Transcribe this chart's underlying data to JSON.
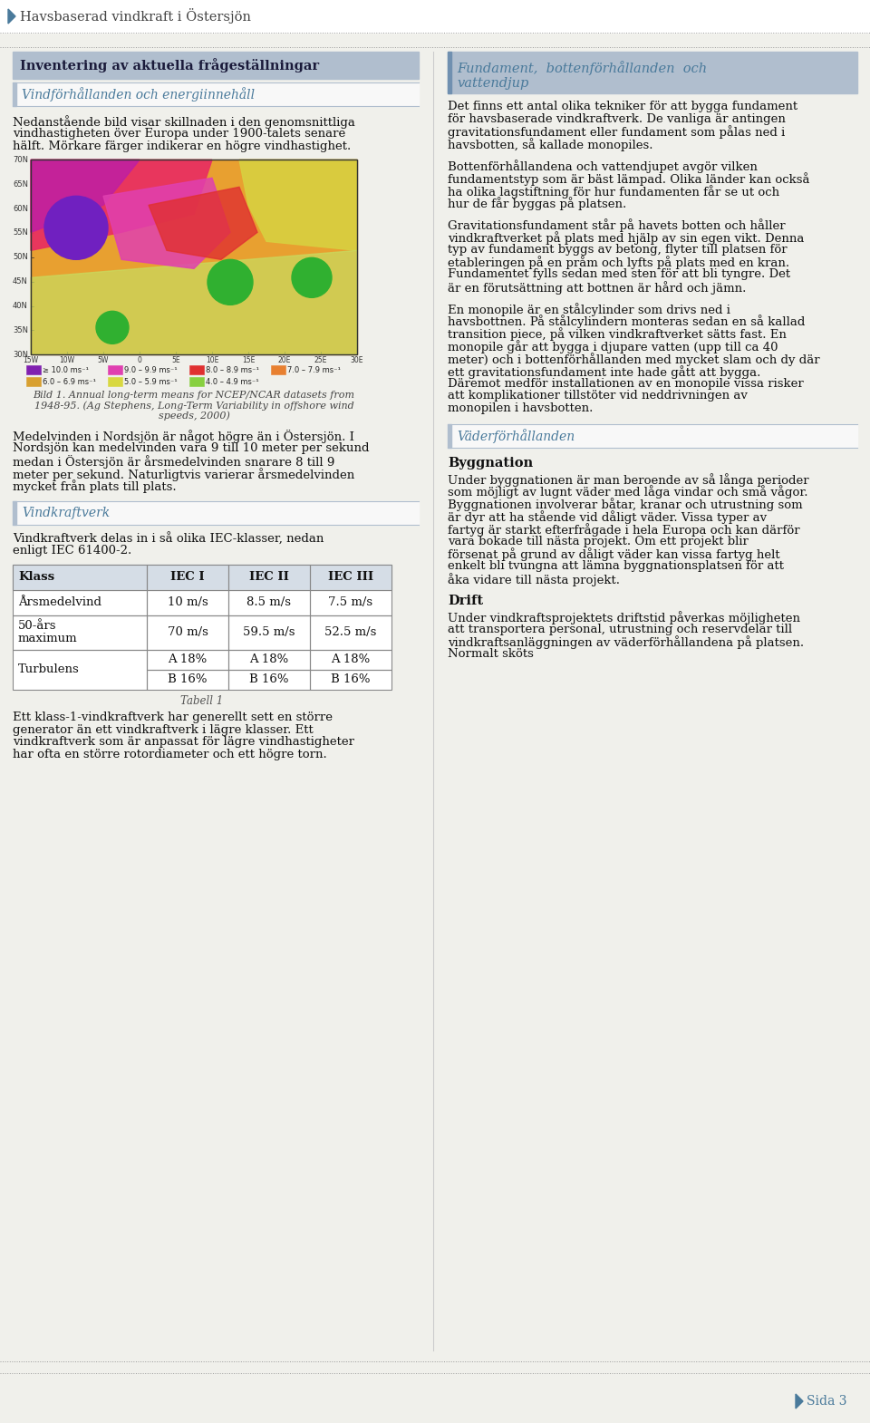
{
  "page_bg": "#f0f0eb",
  "header_text": "Havsbaserad vindkraft i Östersjön",
  "header_arrow_color": "#4a7a9b",
  "footer_text": "Sida 3",
  "footer_color": "#4a7a9b",
  "divider_color": "#999999",
  "left_section_header": "Inventering av aktuella frågeställningar",
  "left_section_header_bg": "#b0bece",
  "subsection1_title": "Vindförhållanden och energiinnehåll",
  "subsection1_color": "#4a7a9b",
  "subsection1_border_color": "#b0bece",
  "subsection1_bg": "#f8f8f8",
  "para1": "Nedanstående bild visar skillnaden i den genomsnittliga vindhastigheten över Europa under 1900-talets senare hälft. Mörkare färger indikerar en högre vindhastighet.",
  "fig_caption_line1": "Bild 1. Annual long-term means for NCEP/NCAR datasets from",
  "fig_caption_line2": "1948-95. (Ag Stephens, Long-Term Variability in offshore wind",
  "fig_caption_line3": "speeds, 2000)",
  "para2": "Medelvinden i Nordsjön är något högre än i Östersjön. I Nordsjön kan medelvinden vara 9 till 10 meter per sekund medan i Östersjön är årsmedelvinden snarare 8 till 9 meter per sekund. Naturligtvis varierar årsmedelvinden mycket från plats till plats.",
  "subsection2_title": "Vindkraftverk",
  "subsection2_color": "#4a7a9b",
  "subsection2_bg": "#f8f8f8",
  "para3": "Vindkraftverk delas in i så olika IEC-klasser, nedan enligt IEC 61400-2.",
  "table_caption": "Tabell 1",
  "table_headers": [
    "Klass",
    "IEC I",
    "IEC II",
    "IEC III"
  ],
  "table_row1": [
    "Årsmedelvind",
    "10 m/s",
    "8.5 m/s",
    "7.5 m/s"
  ],
  "table_row2_label": "50-års\nmaximum",
  "table_row2_vals": [
    "70 m/s",
    "59.5 m/s",
    "52.5 m/s"
  ],
  "table_row3_label": "Turbulens",
  "table_row3_A": "A 18%",
  "table_row3_B": "B 16%",
  "para4": "Ett klass-1-vindkraftverk har generellt sett en större generator än ett vindkraftverk i lägre klasser. Ett vindkraftverk som är anpassat för lägre vindhastigheter har ofta en större rotordiameter och ett högre torn.",
  "right_section_header_line1": "Fundament,  bottenförhållanden  och",
  "right_section_header_line2": "vattendjup",
  "right_section_header_bg": "#b0bece",
  "right_para1": "Det finns ett antal olika tekniker för att bygga fundament för havsbaserade vindkraftverk. De vanliga är antingen gravitationsfundament eller fundament som pålas ned i havsbotten, så kallade monopiles.",
  "right_para2": "Bottenförhållandena och vattendjupet avgör vilken fundamentstyp som är bäst lämpad. Olika länder kan också ha olika lagstiftning för hur fundamenten får se ut och hur de får byggas på platsen.",
  "right_para3": "Gravitationsfundament står på havets botten och håller vindkraftverket på plats med hjälp av sin egen vikt. Denna typ av fundament byggs av betong, flyter till platsen för etableringen på en pråm och lyfts på plats med en kran. Fundamentet fylls sedan med sten för att bli tyngre. Det är en förutsättning att bottnen är hård och jämn.",
  "right_para4": "En monopile är en stålcylinder som drivs ned i havsbottnen. På stålcylindern monteras sedan en så kallad transition piece, på vilken vindkraftverket sätts fast. En monopile går att bygga i djupare vatten (upp till ca 40 meter) och i bottenförhållanden med mycket slam och dy där ett gravitationsfundament inte hade gått att bygga. Däremot medför installationen av en monopile vissa risker att komplikationer tillstöter vid neddrivningen av monopilen i havsbotten.",
  "right_subsection2_title": "Väderförhållanden",
  "right_subsection2_color": "#4a7a9b",
  "right_subsection2_bg": "#f8f8f8",
  "right_subsection3_title": "Byggnation",
  "right_para5": "Under byggnationen är man beroende av så långa perioder som möjligt av lugnt väder med låga vindar och små vågor. Byggnationen involverar båtar, kranar och utrustning som är dyr att ha stående vid dåligt väder. Vissa typer av fartyg är starkt efterfrågade i hela Europa och kan därför vara bokade till nästa projekt. Om ett projekt blir försenat på grund av dåligt väder kan vissa fartyg helt enkelt bli tvungna att lämna byggnationsplatsen för att åka vidare till nästa projekt.",
  "right_subsection4_title": "Drift",
  "right_para6": "Under vindkraftsprojektets driftstid påverkas möjligheten att transportera personal, utrustning och reservdelar till vindkraftsanläggningen av väderförhållandena på platsen. Normalt sköts"
}
